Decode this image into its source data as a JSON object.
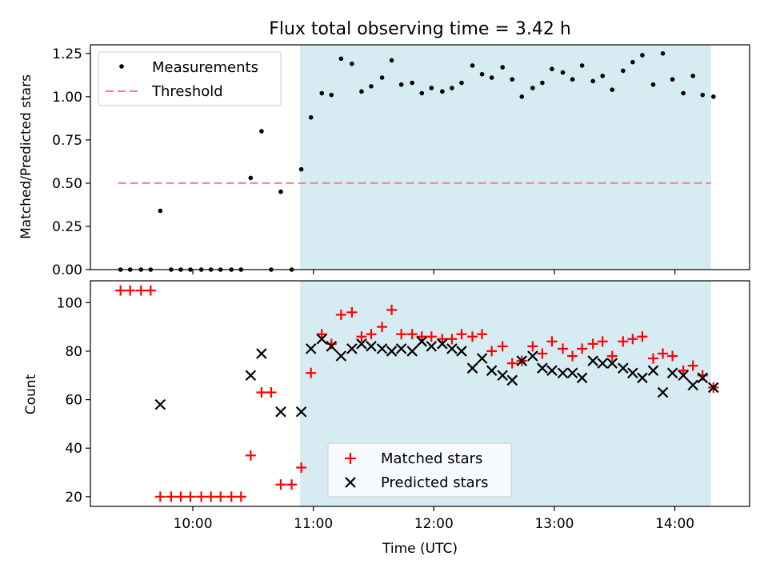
{
  "title": "Flux total observing time = 3.42 h",
  "xlabel": "Time (UTC)",
  "colors": {
    "shade": "#add8e6",
    "threshold": "#ff7f7f",
    "matched": "#ff0000",
    "predicted": "#000000",
    "measurements": "#000000"
  },
  "chart_data": [
    {
      "type": "scatter",
      "panel": "top",
      "ylabel": "Matched/Predicted stars",
      "ylim": [
        0.0,
        1.3
      ],
      "xlim_hours": [
        9.15,
        14.62
      ],
      "yticks": [
        0.0,
        0.25,
        0.5,
        0.75,
        1.0,
        1.25
      ],
      "ytick_labels": [
        "0.00",
        "0.25",
        "0.50",
        "0.75",
        "1.00",
        "1.25"
      ],
      "shaded_span_hours": [
        10.89,
        14.3
      ],
      "threshold": {
        "label": "Threshold",
        "value": 0.5,
        "x_hours": [
          9.38,
          14.3
        ]
      },
      "legend": {
        "placement": "upper-left",
        "entries": [
          "Measurements",
          "Threshold"
        ]
      },
      "series": [
        {
          "name": "Measurements",
          "x_hours": [
            9.4,
            9.48,
            9.57,
            9.65,
            9.73,
            9.82,
            9.9,
            9.98,
            10.07,
            10.15,
            10.23,
            10.32,
            10.4,
            10.48,
            10.57,
            10.65,
            10.73,
            10.82,
            10.9,
            10.98,
            11.07,
            11.15,
            11.23,
            11.32,
            11.4,
            11.48,
            11.57,
            11.65,
            11.73,
            11.82,
            11.9,
            11.98,
            12.07,
            12.15,
            12.23,
            12.32,
            12.4,
            12.48,
            12.57,
            12.65,
            12.73,
            12.82,
            12.9,
            12.98,
            13.07,
            13.15,
            13.23,
            13.32,
            13.4,
            13.48,
            13.57,
            13.65,
            13.73,
            13.82,
            13.9,
            13.98,
            14.07,
            14.15,
            14.23,
            14.32
          ],
          "y": [
            0,
            0,
            0,
            0,
            0.34,
            0,
            0,
            0,
            0,
            0,
            0,
            0,
            0,
            0.53,
            0.8,
            0,
            0.45,
            0,
            0.58,
            0.88,
            1.02,
            1.01,
            1.22,
            1.19,
            1.03,
            1.06,
            1.11,
            1.21,
            1.07,
            1.08,
            1.02,
            1.05,
            1.03,
            1.05,
            1.08,
            1.18,
            1.13,
            1.11,
            1.17,
            1.1,
            1.0,
            1.05,
            1.08,
            1.16,
            1.14,
            1.1,
            1.18,
            1.09,
            1.12,
            1.04,
            1.15,
            1.2,
            1.24,
            1.07,
            1.25,
            1.1,
            1.02,
            1.12,
            1.01,
            1.0
          ]
        }
      ]
    },
    {
      "type": "scatter",
      "panel": "bottom",
      "ylabel": "Count",
      "ylim": [
        16,
        109
      ],
      "xlim_hours": [
        9.15,
        14.62
      ],
      "yticks": [
        20,
        40,
        60,
        80,
        100
      ],
      "ytick_labels": [
        "20",
        "40",
        "60",
        "80",
        "100"
      ],
      "xticks_hours": [
        10,
        11,
        12,
        13,
        14
      ],
      "xtick_labels": [
        "10:00",
        "11:00",
        "12:00",
        "13:00",
        "14:00"
      ],
      "shaded_span_hours": [
        10.89,
        14.3
      ],
      "legend": {
        "placement": "lower-center",
        "entries": [
          "Matched stars",
          "Predicted stars"
        ]
      },
      "series": [
        {
          "name": "Matched stars",
          "marker": "+",
          "x_hours": [
            9.4,
            9.48,
            9.57,
            9.65,
            9.73,
            9.82,
            9.9,
            9.98,
            10.07,
            10.15,
            10.23,
            10.32,
            10.4,
            10.48,
            10.57,
            10.65,
            10.73,
            10.82,
            10.9,
            10.98,
            11.07,
            11.15,
            11.23,
            11.32,
            11.4,
            11.48,
            11.57,
            11.65,
            11.73,
            11.82,
            11.9,
            11.98,
            12.07,
            12.15,
            12.23,
            12.32,
            12.4,
            12.48,
            12.57,
            12.65,
            12.73,
            12.82,
            12.9,
            12.98,
            13.07,
            13.15,
            13.23,
            13.32,
            13.4,
            13.48,
            13.57,
            13.65,
            13.73,
            13.82,
            13.9,
            13.98,
            14.07,
            14.15,
            14.23,
            14.32
          ],
          "y": [
            105,
            105,
            105,
            105,
            20,
            20,
            20,
            20,
            20,
            20,
            20,
            20,
            20,
            37,
            63,
            63,
            25,
            25,
            32,
            71,
            87,
            83,
            95,
            96,
            86,
            87,
            90,
            97,
            87,
            87,
            86,
            86,
            85,
            85,
            87,
            86,
            87,
            80,
            82,
            75,
            76,
            82,
            79,
            84,
            81,
            78,
            81,
            83,
            84,
            78,
            84,
            85,
            86,
            77,
            79,
            78,
            72,
            74,
            70,
            65
          ]
        },
        {
          "name": "Predicted stars",
          "marker": "x",
          "x_hours": [
            9.73,
            10.48,
            10.57,
            10.73,
            10.9,
            10.98,
            11.07,
            11.15,
            11.23,
            11.32,
            11.4,
            11.48,
            11.57,
            11.65,
            11.73,
            11.82,
            11.9,
            11.98,
            12.07,
            12.15,
            12.23,
            12.32,
            12.4,
            12.48,
            12.57,
            12.65,
            12.73,
            12.82,
            12.9,
            12.98,
            13.07,
            13.15,
            13.23,
            13.32,
            13.4,
            13.48,
            13.57,
            13.65,
            13.73,
            13.82,
            13.9,
            13.98,
            14.07,
            14.15,
            14.23,
            14.32
          ],
          "y": [
            58,
            70,
            79,
            55,
            55,
            81,
            85,
            82,
            78,
            81,
            83,
            82,
            81,
            80,
            81,
            80,
            84,
            82,
            83,
            81,
            80,
            73,
            77,
            72,
            70,
            68,
            76,
            78,
            73,
            72,
            71,
            71,
            69,
            76,
            75,
            75,
            73,
            71,
            69,
            72,
            63,
            71,
            70,
            66,
            69,
            65
          ]
        }
      ]
    }
  ]
}
